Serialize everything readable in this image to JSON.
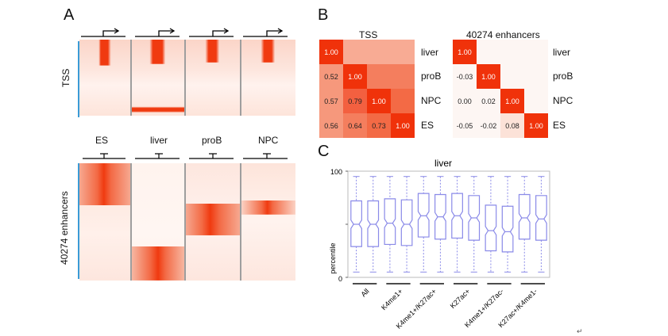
{
  "panel_a": {
    "letter": "A",
    "tss_label": "TSS",
    "enh_label": "40274 enhancers",
    "columns": [
      "ES",
      "liver",
      "proB",
      "NPC"
    ]
  },
  "panel_b": {
    "letter": "B",
    "tss": {
      "title": "TSS",
      "labels": [
        "liver",
        "proB",
        "NPC",
        "ES"
      ],
      "rows": [
        [
          "1.00"
        ],
        [
          "0.52",
          "1.00"
        ],
        [
          "0.57",
          "0.79",
          "1.00"
        ],
        [
          "0.56",
          "0.64",
          "0.73",
          "1.00"
        ]
      ]
    },
    "enh": {
      "title": "40274 enhancers",
      "labels": [
        "liver",
        "proB",
        "NPC",
        "ES"
      ],
      "rows": [
        [
          "1.00"
        ],
        [
          "-0.03",
          "1.00"
        ],
        [
          "0.00",
          "0.02",
          "1.00"
        ],
        [
          "-0.05",
          "-0.02",
          "0.08",
          "1.00"
        ]
      ]
    },
    "colors": {
      "high": "#f0320a",
      "mid": "#f36a45",
      "low": "#f69b80",
      "bg": "#f8ad96"
    }
  },
  "panel_c": {
    "letter": "C"
  },
  "chart_data": {
    "type": "box",
    "title": "liver",
    "ylabel": "percentile",
    "ylim": [
      0,
      100
    ],
    "yticks": [
      "0",
      "50",
      "100"
    ],
    "ytick_labels": [
      "0",
      "100"
    ],
    "group_labels": [
      "All",
      "K4me1+",
      "K4me1+/K27ac+",
      "K27ac+",
      "K4me1+/K27ac-",
      "K27ac+/K4me1-"
    ],
    "boxes_per_group": 2,
    "boxes": [
      {
        "group": "All",
        "q1": 29,
        "median": 50,
        "q3": 72,
        "notch": 4,
        "whisker_low": 5,
        "whisker_high": 95
      },
      {
        "group": "All",
        "q1": 29,
        "median": 50,
        "q3": 72,
        "notch": 4,
        "whisker_low": 5,
        "whisker_high": 95
      },
      {
        "group": "K4me1+",
        "q1": 31,
        "median": 51,
        "q3": 74,
        "notch": 4,
        "whisker_low": 5,
        "whisker_high": 95
      },
      {
        "group": "K4me1+",
        "q1": 30,
        "median": 50,
        "q3": 73,
        "notch": 4,
        "whisker_low": 5,
        "whisker_high": 95
      },
      {
        "group": "K4me1+/K27ac+",
        "q1": 38,
        "median": 58,
        "q3": 79,
        "notch": 4,
        "whisker_low": 5,
        "whisker_high": 95
      },
      {
        "group": "K4me1+/K27ac+",
        "q1": 36,
        "median": 57,
        "q3": 78,
        "notch": 4,
        "whisker_low": 5,
        "whisker_high": 95
      },
      {
        "group": "K27ac+",
        "q1": 37,
        "median": 58,
        "q3": 79,
        "notch": 4,
        "whisker_low": 5,
        "whisker_high": 95
      },
      {
        "group": "K27ac+",
        "q1": 35,
        "median": 56,
        "q3": 77,
        "notch": 4,
        "whisker_low": 5,
        "whisker_high": 95
      },
      {
        "group": "K4me1+/K27ac-",
        "q1": 25,
        "median": 44,
        "q3": 68,
        "notch": 4,
        "whisker_low": 5,
        "whisker_high": 95
      },
      {
        "group": "K4me1+/K27ac-",
        "q1": 24,
        "median": 43,
        "q3": 67,
        "notch": 4,
        "whisker_low": 5,
        "whisker_high": 95
      },
      {
        "group": "K27ac+/K4me1-",
        "q1": 36,
        "median": 56,
        "q3": 78,
        "notch": 4,
        "whisker_low": 5,
        "whisker_high": 95
      },
      {
        "group": "K27ac+/K4me1-",
        "q1": 35,
        "median": 55,
        "q3": 77,
        "notch": 4,
        "whisker_low": 5,
        "whisker_high": 95
      }
    ]
  }
}
